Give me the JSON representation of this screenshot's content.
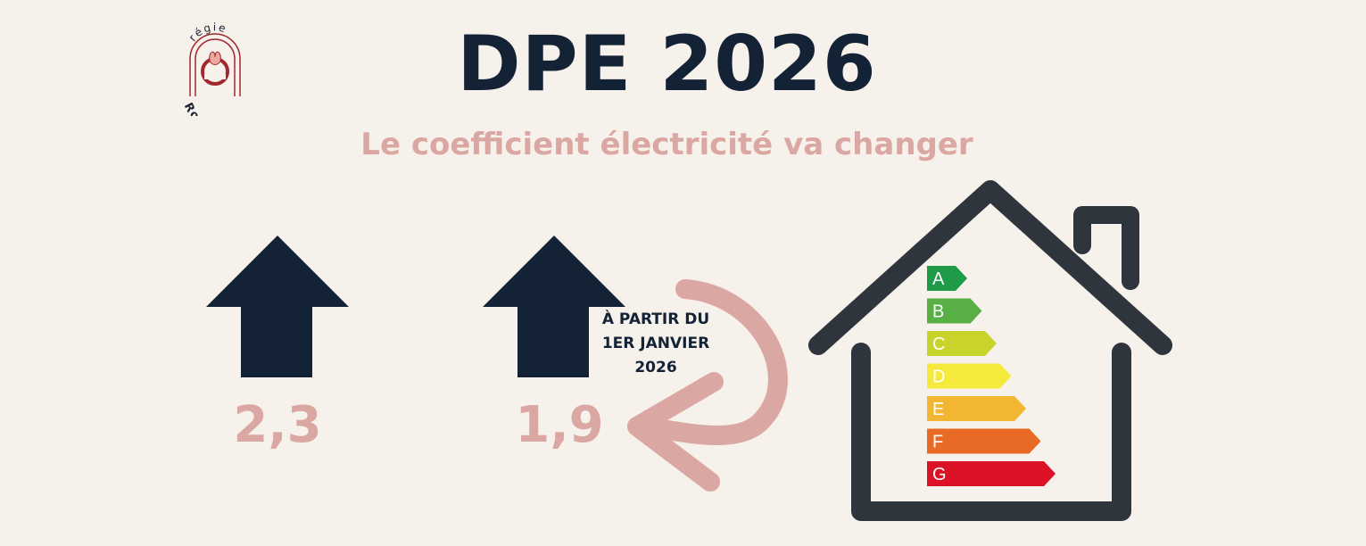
{
  "header": {
    "title": "DPE 2026",
    "subtitle": "Le coefficient électricité va changer"
  },
  "logo": {
    "top_text": "régie",
    "bottom_text": "Rosélie",
    "icon": "rose-e-monogram-logo",
    "color": "#a0282e"
  },
  "coefficients": {
    "current_value": "2,3",
    "new_value": "1,9"
  },
  "note": {
    "line1": "À PARTIR DU",
    "line2": "1ER JANVIER",
    "line3": "2026"
  },
  "energy_scale": {
    "icon": "house-energy-label-icon",
    "ratings": [
      {
        "letter": "A",
        "color": "#1e9a48"
      },
      {
        "letter": "B",
        "color": "#58b044"
      },
      {
        "letter": "C",
        "color": "#c8d42c"
      },
      {
        "letter": "D",
        "color": "#f5e93c"
      },
      {
        "letter": "E",
        "color": "#f2b632"
      },
      {
        "letter": "F",
        "color": "#e86a24"
      },
      {
        "letter": "G",
        "color": "#dc1326"
      }
    ]
  },
  "colors": {
    "background": "#f6f1ea",
    "navy": "#142236",
    "pink": "#dba7a2",
    "house": "#2f353d"
  }
}
